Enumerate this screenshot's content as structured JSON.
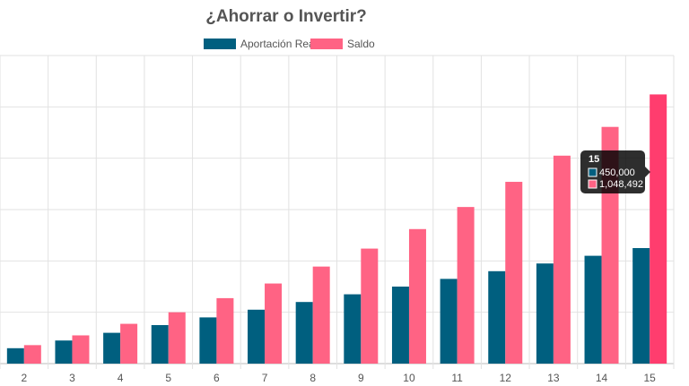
{
  "chart_data": {
    "type": "bar",
    "title": "¿Ahorrar o Invertir?",
    "categories": [
      "2",
      "3",
      "4",
      "5",
      "6",
      "7",
      "8",
      "9",
      "10",
      "11",
      "12",
      "13",
      "14",
      "15"
    ],
    "series": [
      {
        "name": "Aportación Real",
        "color": "#005f7f",
        "values": [
          60000,
          90000,
          120000,
          150000,
          180000,
          210000,
          240000,
          270000,
          300000,
          330000,
          360000,
          390000,
          420000,
          450000
        ]
      },
      {
        "name": "Saldo",
        "color": "#ff6384",
        "values": [
          72000,
          110000,
          155000,
          200000,
          255000,
          312000,
          378000,
          448000,
          524000,
          610000,
          708000,
          810000,
          922000,
          1048492
        ]
      }
    ],
    "ylim": [
      0,
      1200000
    ],
    "grid": true,
    "legend": "top-center",
    "tooltip": {
      "title": "15",
      "lines": [
        "450,000",
        "1,048,492"
      ],
      "highlight_color": "#ff3d6e"
    }
  }
}
